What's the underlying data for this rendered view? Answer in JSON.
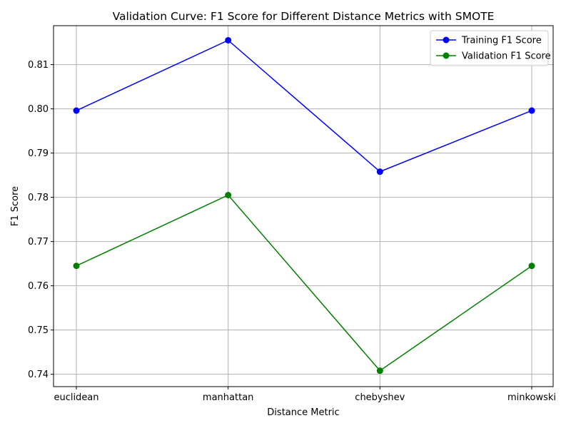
{
  "chart_data": {
    "type": "line",
    "title": "Validation Curve: F1 Score for Different Distance Metrics with SMOTE",
    "xlabel": "Distance Metric",
    "ylabel": "F1 Score",
    "categories": [
      "euclidean",
      "manhattan",
      "chebyshev",
      "minkowski"
    ],
    "ylim": [
      0.7372,
      0.8188
    ],
    "yticks": [
      0.74,
      0.75,
      0.76,
      0.77,
      0.78,
      0.79,
      0.8,
      0.81
    ],
    "ytick_labels": [
      "0.74",
      "0.75",
      "0.76",
      "0.77",
      "0.78",
      "0.79",
      "0.80",
      "0.81"
    ],
    "grid": true,
    "legend_position": "top-right",
    "series": [
      {
        "name": "Training F1 Score",
        "color": "#0000ff",
        "marker": "circle",
        "values": [
          0.7996,
          0.8155,
          0.7858,
          0.7996
        ]
      },
      {
        "name": "Validation F1 Score",
        "color": "#008000",
        "marker": "circle",
        "values": [
          0.7645,
          0.7805,
          0.7408,
          0.7645
        ]
      }
    ]
  }
}
